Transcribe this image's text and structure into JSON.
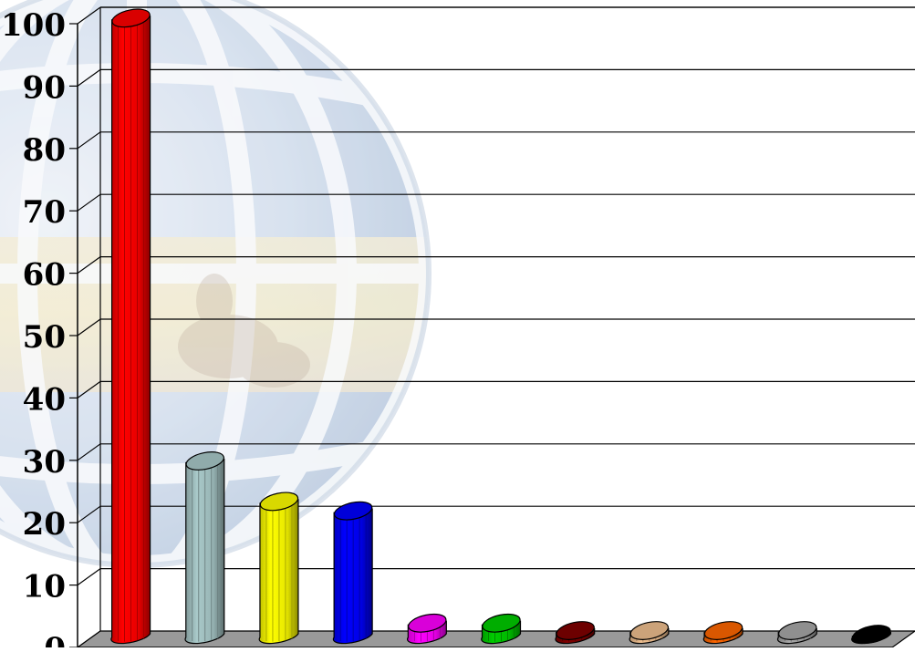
{
  "chart_data": {
    "type": "bar",
    "title": "",
    "xlabel": "",
    "ylabel": "",
    "ylim": [
      0,
      100
    ],
    "y_ticks": [
      "0",
      "10",
      "20",
      "30",
      "40",
      "50",
      "60",
      "70",
      "80",
      "90",
      "100"
    ],
    "grid": true,
    "legend": "none",
    "background_image": "globe-watermark",
    "categories": [
      "",
      "",
      "",
      "",
      "",
      "",
      "",
      "",
      "",
      "",
      ""
    ],
    "values": [
      99,
      28,
      21.5,
      20,
      2,
      2,
      0.8,
      0.8,
      0.8,
      0.8,
      0.2
    ],
    "colors": [
      "#ff0000",
      "#a9c9c9",
      "#ffff00",
      "#0000ff",
      "#ff00ff",
      "#00cc00",
      "#800000",
      "#f0c090",
      "#ff6600",
      "#a8a8a8",
      "#000000"
    ]
  }
}
